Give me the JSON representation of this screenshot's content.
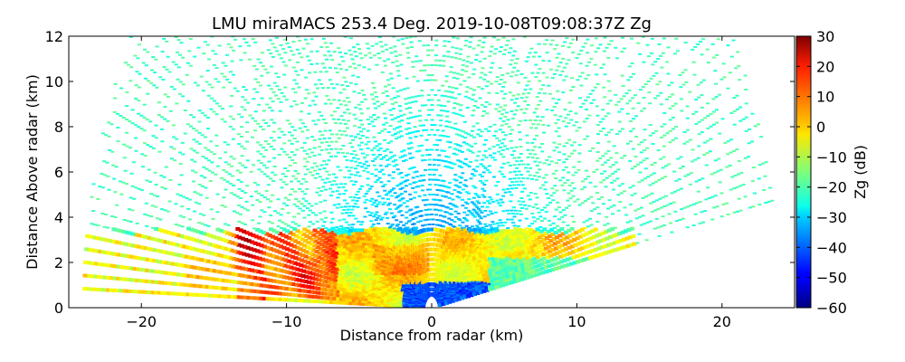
{
  "chart_data": {
    "type": "heatmap",
    "title": "LMU miraMACS 253.4 Deg. 2019-10-08T09:08:37Z  Zg",
    "xlabel": "Distance from radar (km)",
    "ylabel": "Distance Above radar  (km)",
    "xlim": [
      -25,
      25
    ],
    "ylim": [
      0,
      12
    ],
    "x_ticks": [
      -20,
      -10,
      0,
      10,
      20
    ],
    "x_tick_labels": [
      "−20",
      "−10",
      "0",
      "10",
      "20"
    ],
    "y_ticks": [
      0,
      2,
      4,
      6,
      8,
      10,
      12
    ],
    "y_tick_labels": [
      "0",
      "2",
      "4",
      "6",
      "8",
      "10",
      "12"
    ],
    "grid": false,
    "colorbar": {
      "label": "Zg (dB)",
      "range": [
        -60,
        30
      ],
      "colormap": "jet",
      "ticks": [
        -60,
        -50,
        -40,
        -30,
        -20,
        -10,
        0,
        10,
        20,
        30
      ],
      "tick_labels": [
        "−60",
        "−50",
        "−40",
        "−30",
        "−20",
        "−10",
        "0",
        "10",
        "20",
        "30"
      ]
    },
    "scan": {
      "azimuth_deg": 253.4,
      "timestamp": "2019-10-08T09:08:37Z",
      "max_range_km": 24,
      "lowest_elevation_left_deg": 2,
      "lowest_elevation_right_deg": 10
    },
    "regions": [
      {
        "name": "background noise",
        "zg_db_typical": -25
      },
      {
        "name": "near-radar noise",
        "zg_db_typical": -40
      },
      {
        "name": "precipitation layer",
        "x_range_km": [
          -24,
          14
        ],
        "z_range_km": [
          0,
          3.6
        ],
        "zg_db_typical": 5
      },
      {
        "name": "core",
        "x_range_km": [
          -13,
          -7
        ],
        "z_range_km": [
          0.5,
          3.8
        ],
        "zg_db_max": 25
      },
      {
        "name": "low-level clutter near radar",
        "x_range_km": [
          -2,
          5
        ],
        "z_range_km": [
          0,
          1
        ],
        "zg_db_typical": -45
      }
    ]
  }
}
